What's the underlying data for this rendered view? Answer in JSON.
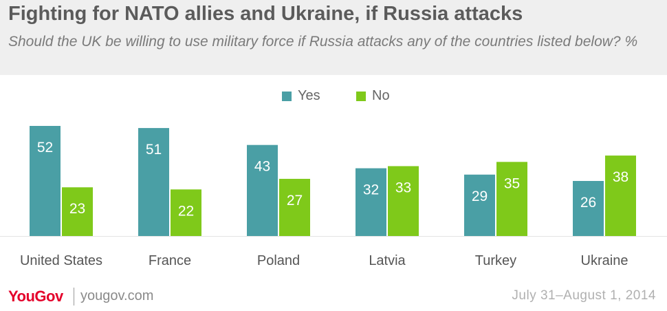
{
  "title": "Fighting for NATO allies and Ukraine, if Russia attacks",
  "subtitle": "Should the UK be willing to use military force if Russia attacks any of the countries listed below? %",
  "footer": {
    "logo": "YouGov",
    "site": "yougov.com",
    "date": "July 31–August 1, 2014"
  },
  "colors": {
    "yes": "#4a9fa5",
    "no": "#7fc91a"
  },
  "chart_data": {
    "type": "bar",
    "categories": [
      "United States",
      "France",
      "Poland",
      "Latvia",
      "Turkey",
      "Ukraine"
    ],
    "series": [
      {
        "name": "Yes",
        "values": [
          52,
          51,
          43,
          32,
          29,
          26
        ]
      },
      {
        "name": "No",
        "values": [
          23,
          22,
          27,
          33,
          35,
          38
        ]
      }
    ],
    "title": "Fighting for NATO allies and Ukraine, if Russia attacks",
    "subtitle": "Should the UK be willing to use military force if Russia attacks any of the countries listed below? %",
    "xlabel": "",
    "ylabel": "",
    "ylim": [
      0,
      52
    ],
    "grid": false,
    "legend": "top-center"
  }
}
